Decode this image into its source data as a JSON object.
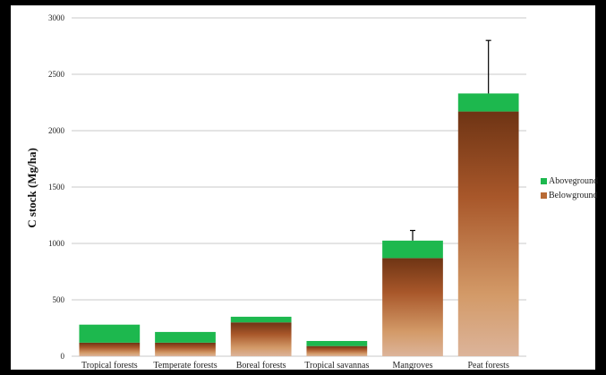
{
  "chart_data": {
    "type": "bar",
    "stacked": true,
    "categories": [
      "Tropical forests",
      "Temperate forests",
      "Boreal forests",
      "Tropical savannas",
      "Mangroves",
      "Peat forests"
    ],
    "series": [
      {
        "name": "Belowground",
        "values": [
          120,
          120,
          300,
          90,
          870,
          2170
        ],
        "color": "#b86a35"
      },
      {
        "name": "Aboveground",
        "values": [
          160,
          95,
          50,
          45,
          155,
          160
        ],
        "color": "#1db84e"
      }
    ],
    "error_bars": [
      null,
      null,
      null,
      null,
      90,
      470
    ],
    "title": "",
    "xlabel": "",
    "ylabel": "C stock (Mg/ha)",
    "ylim": [
      0,
      3000
    ],
    "yticks": [
      0,
      500,
      1000,
      1500,
      2000,
      2500,
      3000
    ],
    "grid": true,
    "legend_position": "right",
    "legend": [
      "Aboveground",
      "Belowground"
    ]
  }
}
